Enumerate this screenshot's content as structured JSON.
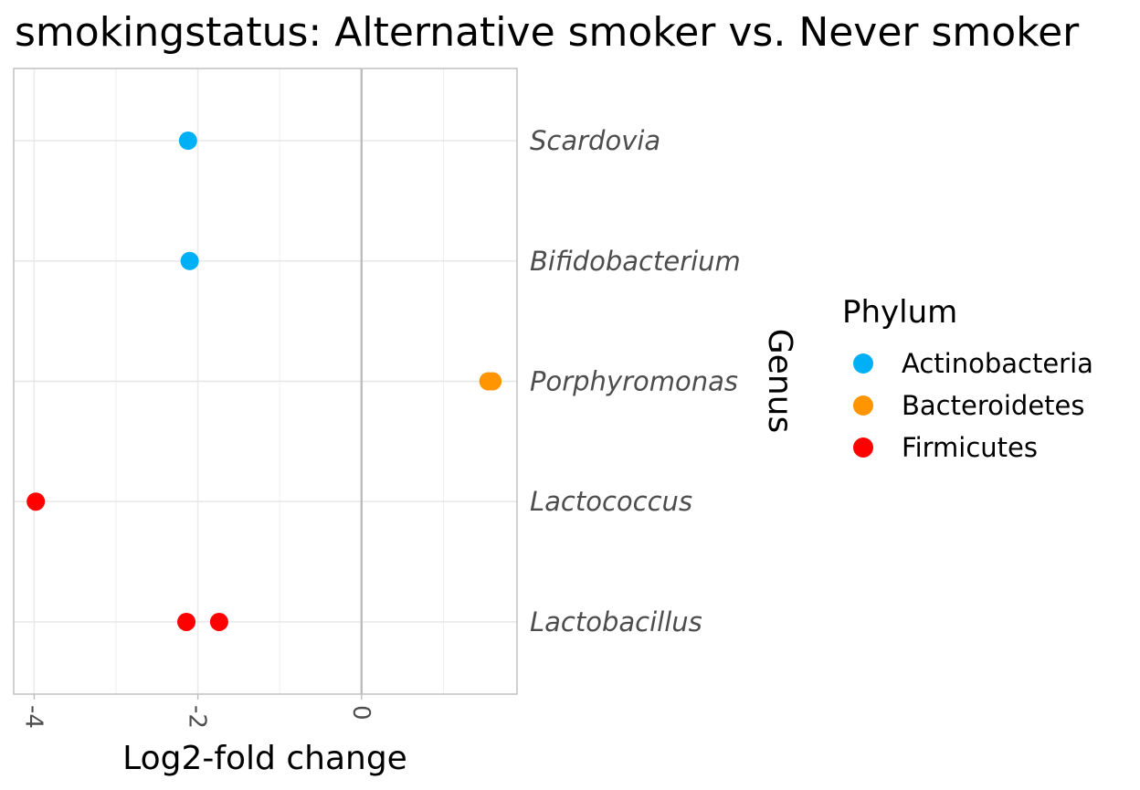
{
  "chart_data": {
    "type": "scatter",
    "title": "smokingstatus: Alternative smoker vs. Never smoker",
    "xlabel": "Log2-fold change",
    "ylabel": "Genus",
    "xlim": [
      -4.25,
      1.9
    ],
    "x_ticks": [
      -4,
      -2,
      0
    ],
    "x_tick_labels": [
      "-4",
      "-2",
      "0"
    ],
    "categories": [
      "Lactobacillus",
      "Lactococcus",
      "Porphyromonas",
      "Bifidobacterium",
      "Scardovia"
    ],
    "reference_line_x": 0,
    "grid": true,
    "legend_title": "Phylum",
    "legend_position": "right",
    "series": [
      {
        "name": "Actinobacteria",
        "color": "#00b0f6",
        "points": [
          {
            "genus": "Scardovia",
            "x": -2.12
          },
          {
            "genus": "Bifidobacterium",
            "x": -2.1
          }
        ]
      },
      {
        "name": "Bacteroidetes",
        "color": "#ff9500",
        "points": [
          {
            "genus": "Porphyromonas",
            "x": 1.55
          },
          {
            "genus": "Porphyromonas",
            "x": 1.6
          }
        ]
      },
      {
        "name": "Firmicutes",
        "color": "#ff0000",
        "points": [
          {
            "genus": "Lactococcus",
            "x": -3.98
          },
          {
            "genus": "Lactobacillus",
            "x": -2.14
          },
          {
            "genus": "Lactobacillus",
            "x": -1.74
          }
        ]
      }
    ]
  }
}
